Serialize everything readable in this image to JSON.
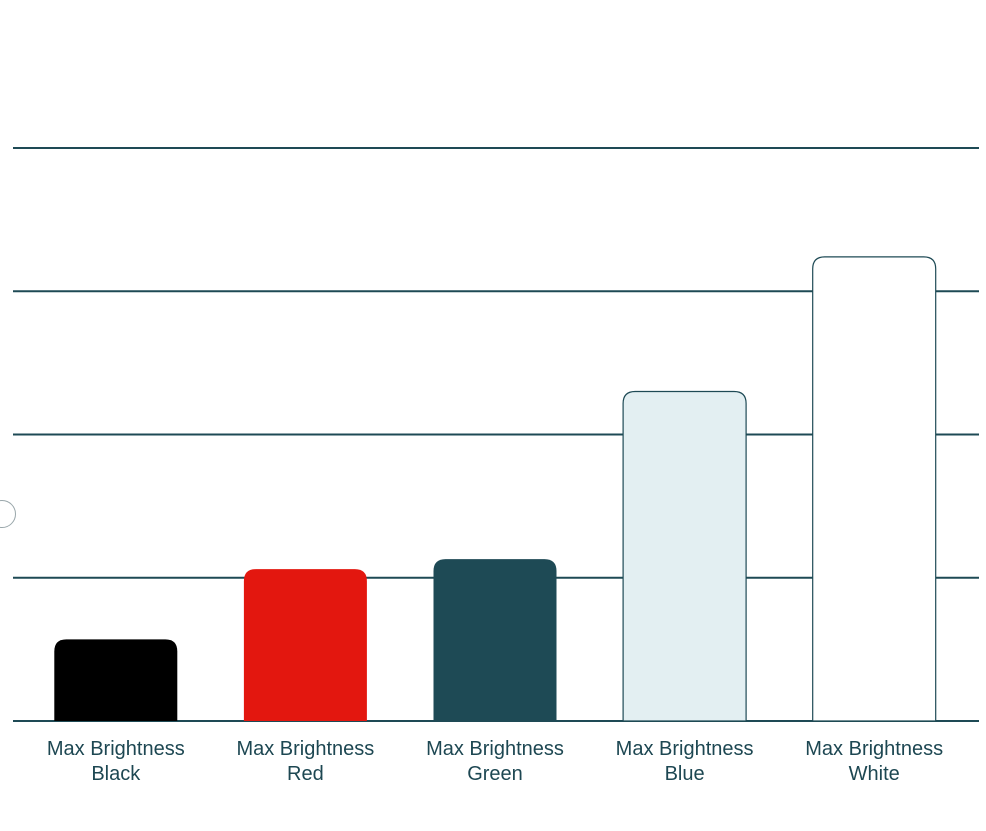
{
  "chart_data": {
    "type": "bar",
    "categories": [
      [
        "Max Brightness",
        "Black"
      ],
      [
        "Max Brightness",
        "Red"
      ],
      [
        "Max Brightness",
        "Green"
      ],
      [
        "Max Brightness",
        "Blue"
      ],
      [
        "Max Brightness",
        "White"
      ]
    ],
    "values": [
      0.57,
      1.06,
      1.13,
      2.3,
      3.24
    ],
    "bar_colors": [
      "#000000",
      "#e3170f",
      "#1e4a55",
      "#e3eff2",
      "#ffffff"
    ],
    "bar_outline": "#1e4a55",
    "gridline_color": "#1e4a55",
    "label_color": "#1d4752",
    "ylim": [
      0,
      4
    ],
    "grid": true,
    "title": "",
    "xlabel": "",
    "ylabel": ""
  }
}
